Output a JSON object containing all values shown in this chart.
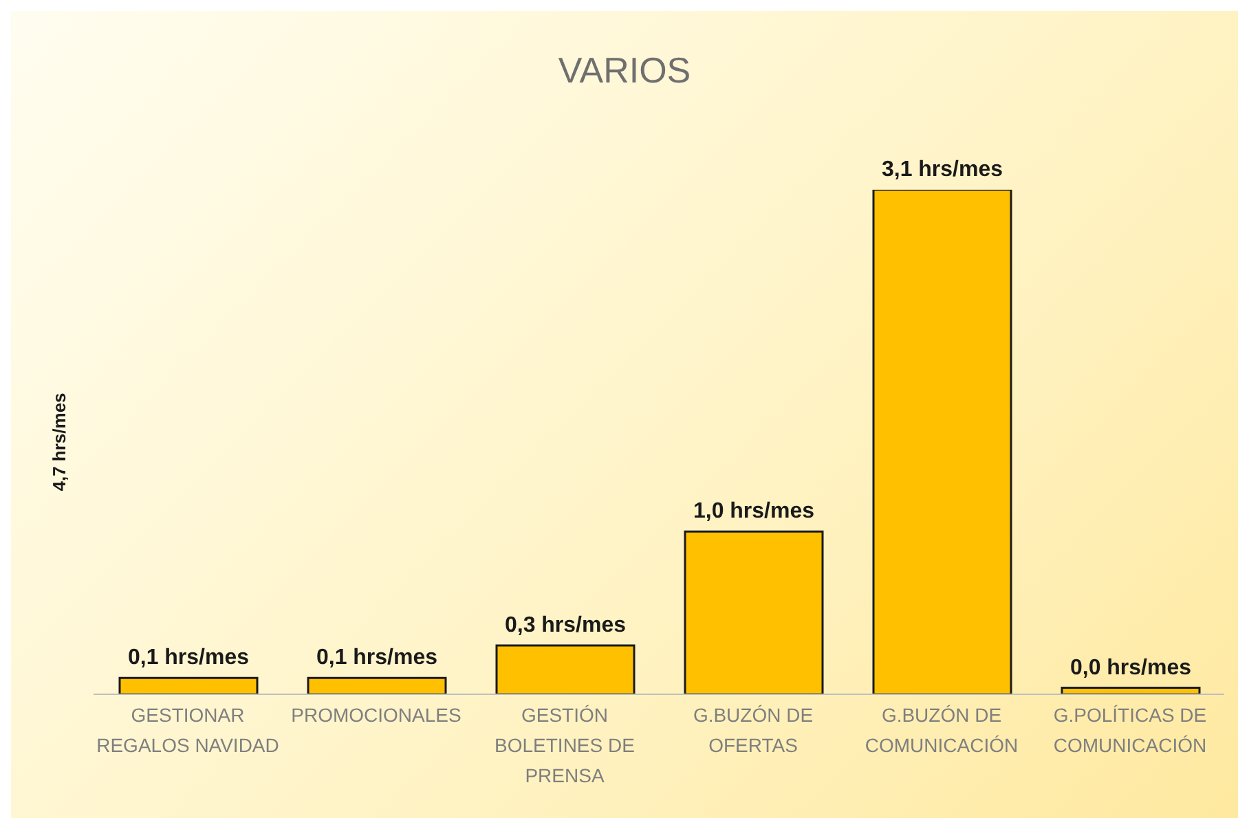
{
  "chart_data": {
    "type": "bar",
    "title": "VARIOS",
    "ylabel": "4,7 hrs/mes",
    "categories": [
      "GESTIONAR REGALOS NAVIDAD",
      "PROMOCIONALES",
      "GESTIÓN BOLETINES DE PRENSA",
      "G.BUZÓN DE OFERTAS",
      "G.BUZÓN DE COMUNICACIÓN",
      "G.POLÍTICAS DE COMUNICACIÓN"
    ],
    "values": [
      0.1,
      0.1,
      0.3,
      1.0,
      3.1,
      0.04
    ],
    "value_labels": [
      "0,1 hrs/mes",
      "0,1 hrs/mes",
      "0,3 hrs/mes",
      "1,0 hrs/mes",
      "3,1 hrs/mes",
      "0,0 hrs/mes"
    ],
    "color": "#ffc000",
    "grid": false,
    "legend": false
  }
}
